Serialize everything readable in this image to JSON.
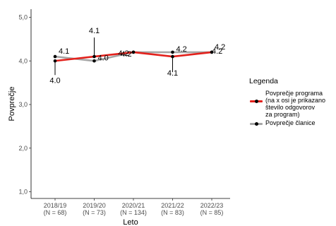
{
  "chart_data": {
    "type": "line",
    "title": "",
    "xlabel": "Leto",
    "ylabel": "Povprečje",
    "categories": [
      "2018/19",
      "2019/20",
      "2020/21",
      "2021/22",
      "2022/23"
    ],
    "category_counts": [
      "(N = 68)",
      "(N = 73)",
      "(N = 134)",
      "(N = 83)",
      "(N = 85)"
    ],
    "ylim": [
      1.0,
      5.0
    ],
    "yticks": [
      1.0,
      2.0,
      3.0,
      4.0,
      5.0
    ],
    "ytick_labels": [
      "1,0",
      "2,0",
      "3,0",
      "4,0",
      "5,0"
    ],
    "grid": false,
    "legend_position": "right",
    "series": [
      {
        "name": "Povprečje programa\n(na x osi je prikazano\nštevilo odgovorov\nza program)",
        "color": "#e3211c",
        "values": [
          4.0,
          4.1,
          4.2,
          4.1,
          4.2
        ],
        "labels": [
          "4.0",
          "4.1",
          "4.2",
          "4.1",
          "4.2"
        ]
      },
      {
        "name": "Povprečje članice",
        "color": "#a6a6a6",
        "values": [
          4.1,
          4.0,
          4.2,
          4.2,
          4.2
        ],
        "labels": [
          "4.1",
          "4.0",
          "4.2",
          "4.2",
          "4.2"
        ]
      }
    ],
    "legend_title": "Legenda"
  }
}
